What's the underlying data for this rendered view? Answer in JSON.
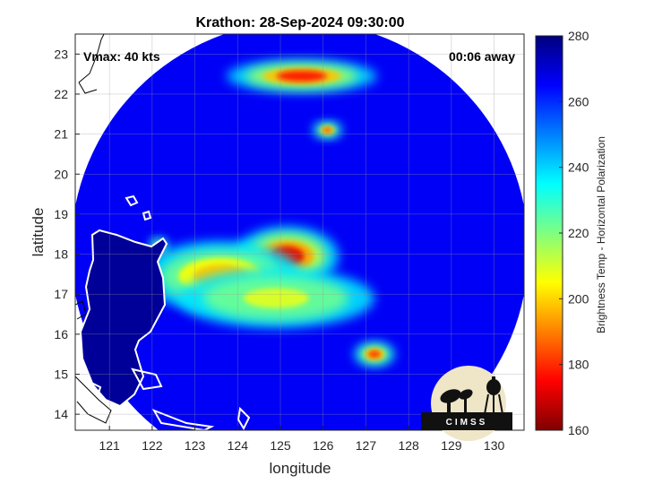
{
  "chart_data": {
    "type": "heatmap",
    "title": "Krathon: 28-Sep-2024 09:30:00",
    "xlabel": "longitude",
    "ylabel": "latitude",
    "xlim": [
      120.2,
      130.7
    ],
    "ylim": [
      13.6,
      23.5
    ],
    "xticks": [
      121,
      122,
      123,
      124,
      125,
      126,
      127,
      128,
      129,
      130
    ],
    "yticks": [
      14,
      15,
      16,
      17,
      18,
      19,
      20,
      21,
      22,
      23
    ],
    "grid": true,
    "colorbar": {
      "label": "Brightness Temp - Horizontal Polarization",
      "range": [
        160,
        280
      ],
      "ticks": [
        160,
        180,
        200,
        220,
        240,
        260,
        280
      ],
      "colormap": "jet"
    },
    "swath": {
      "center_lon": 125.45,
      "center_lat": 18.1,
      "radius_deg": 5.35,
      "background_temp": 266
    },
    "land_temp": 277,
    "features": [
      {
        "name": "eyewall-core",
        "lon": 125.15,
        "lat": 17.95,
        "rx": 0.9,
        "ry": 0.55,
        "temp": 172
      },
      {
        "name": "west-band",
        "lon": 123.6,
        "lat": 17.45,
        "rx": 1.4,
        "ry": 0.65,
        "temp": 198
      },
      {
        "name": "south-arc",
        "lon": 124.9,
        "lat": 16.9,
        "rx": 1.7,
        "ry": 0.55,
        "temp": 208
      },
      {
        "name": "north-feeder",
        "lon": 125.5,
        "lat": 22.45,
        "rx": 1.3,
        "ry": 0.3,
        "temp": 176
      },
      {
        "name": "north-cell",
        "lon": 126.1,
        "lat": 21.1,
        "rx": 0.25,
        "ry": 0.15,
        "temp": 182
      },
      {
        "name": "southeast-cell",
        "lon": 127.2,
        "lat": 15.5,
        "rx": 0.35,
        "ry": 0.22,
        "temp": 180
      },
      {
        "name": "west-spot",
        "lon": 122.15,
        "lat": 18.2,
        "rx": 0.15,
        "ry": 0.15,
        "temp": 222
      }
    ],
    "annotations": {
      "vmax": "Vmax: 40 kts",
      "time_away": "00:06 away"
    }
  },
  "logo": {
    "text": "CIMSS"
  },
  "colors": {
    "coastline": "#ffffff",
    "coast_outline": "#000000",
    "grid": "#999999"
  }
}
